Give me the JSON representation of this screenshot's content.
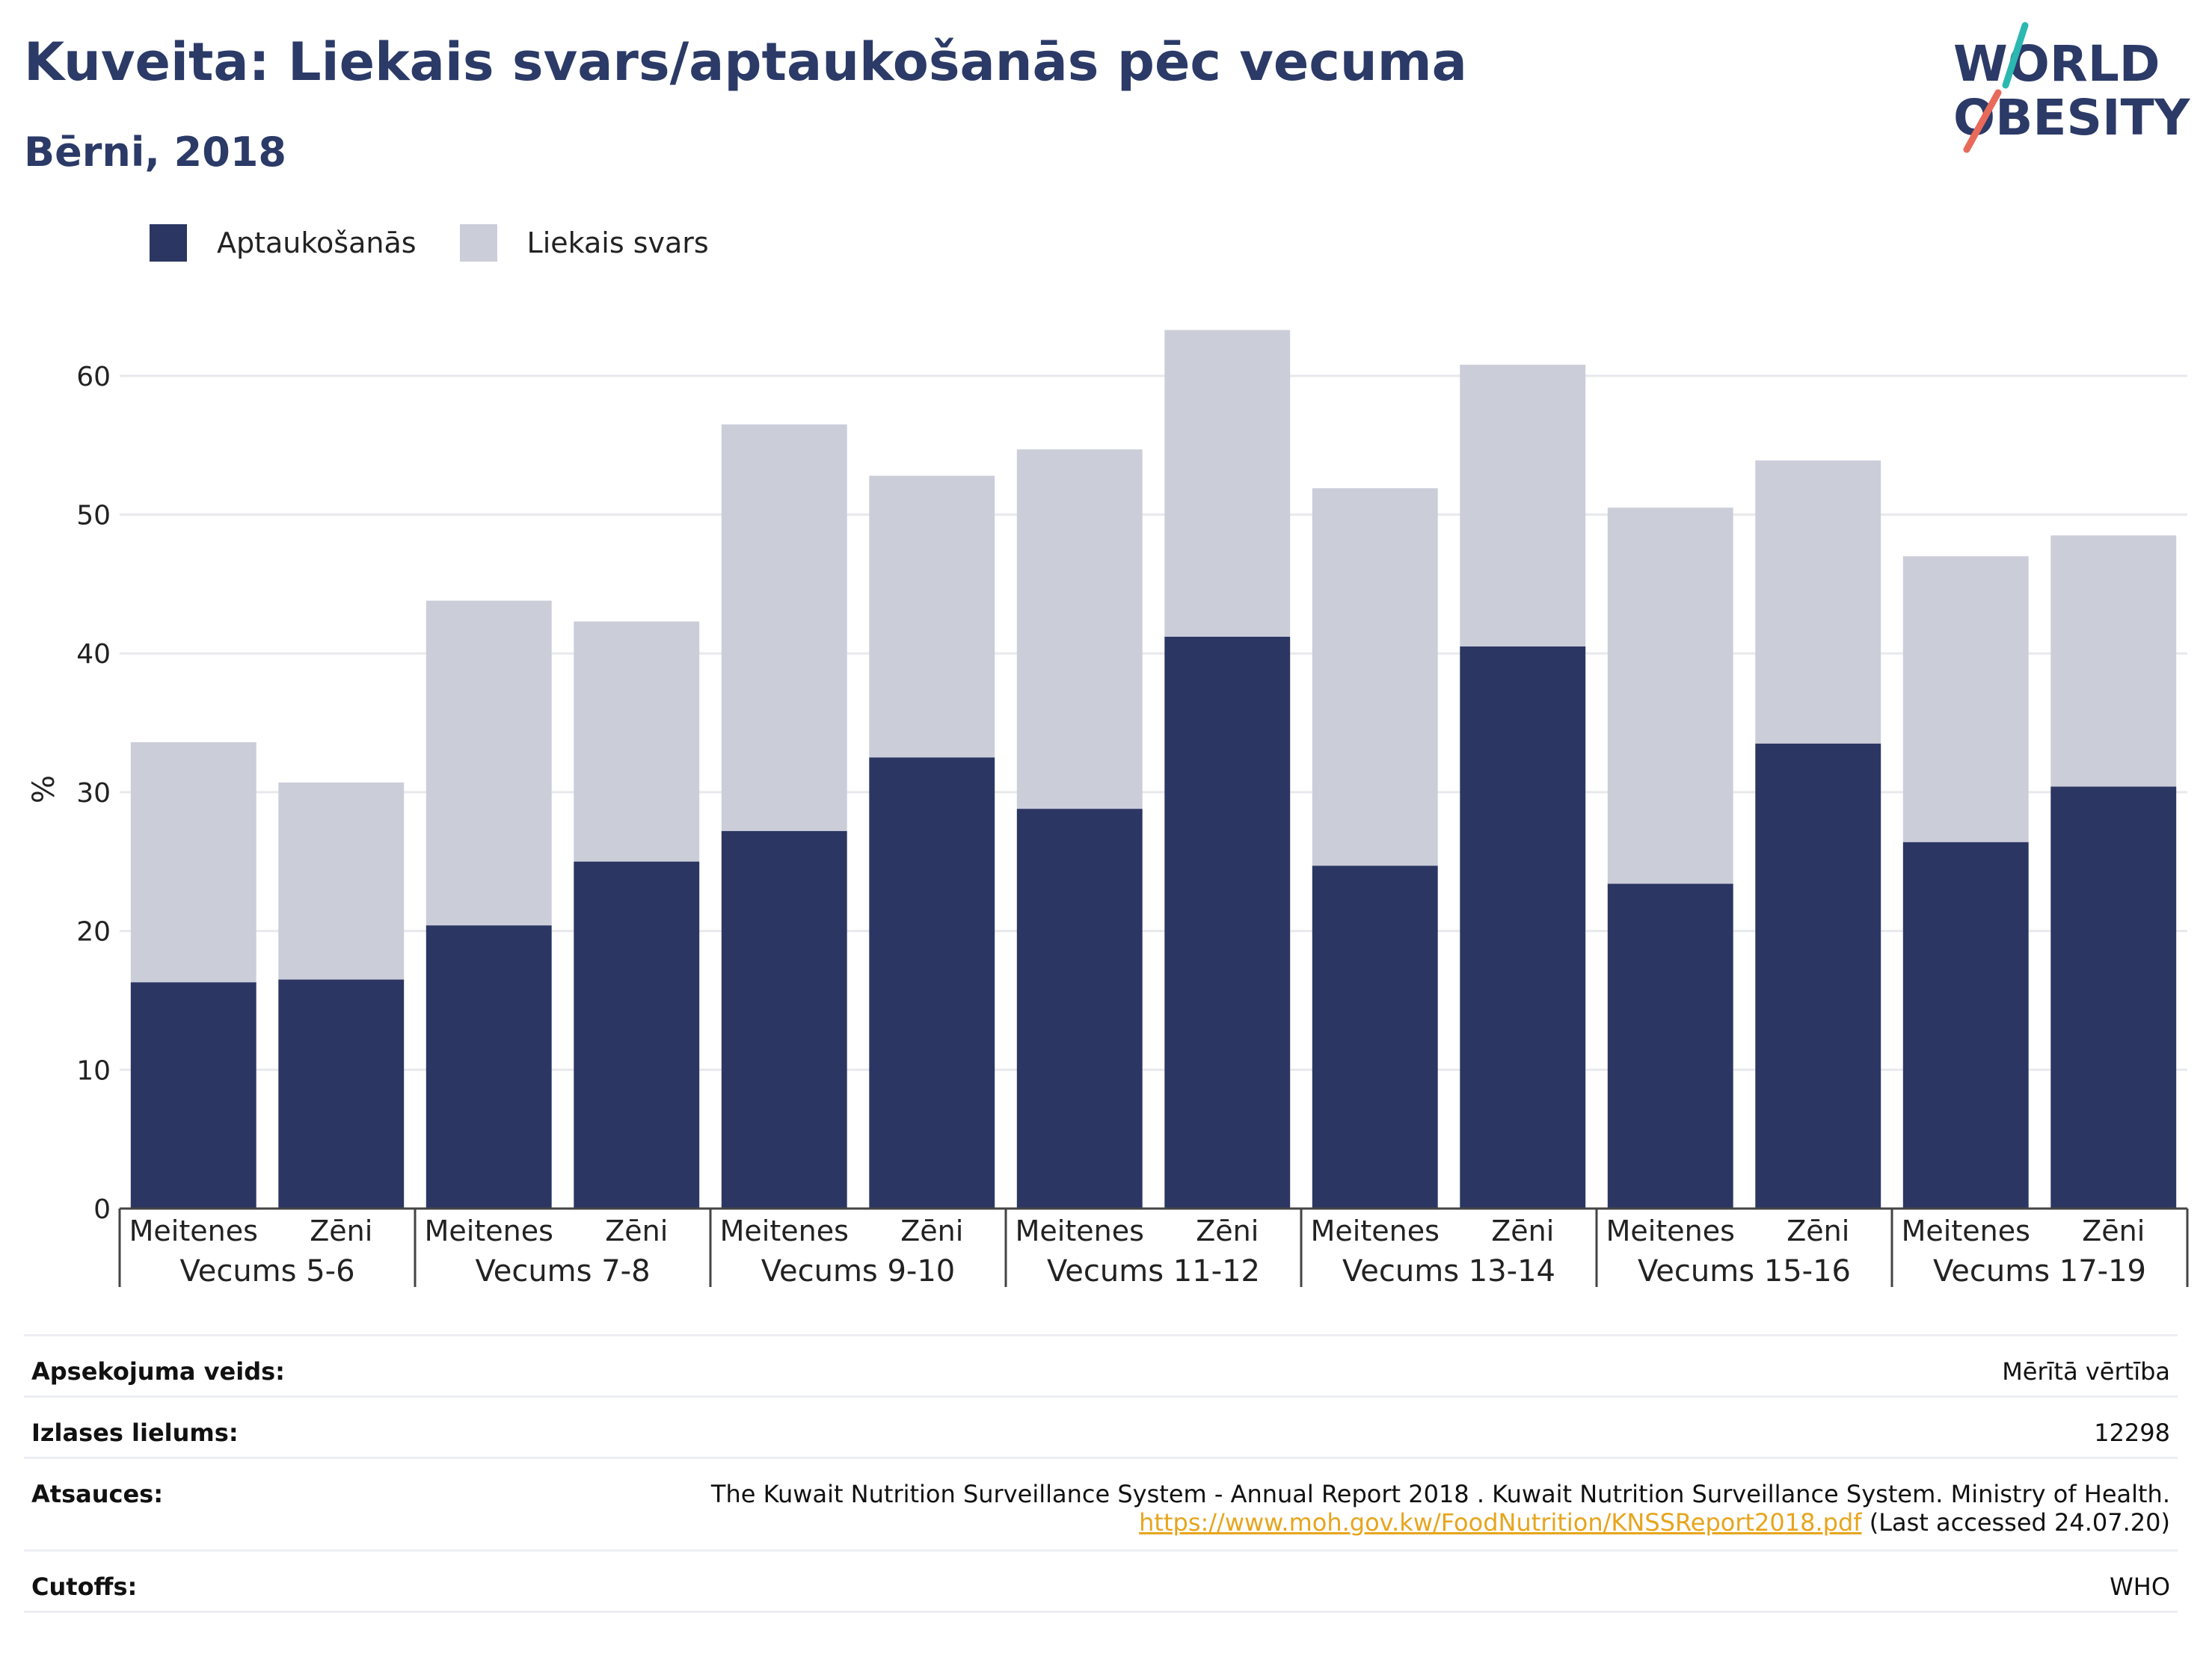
{
  "header": {
    "title": "Kuveita: Liekais svars/aptaukošanās pēc vecuma",
    "subtitle": "Bērni, 2018",
    "logo_line1": "WORLD",
    "logo_line2": "OBESITY"
  },
  "colors": {
    "obesity": "#2b3663",
    "overweight": "#cbcdd9",
    "title": "#2b3a67",
    "link": "#e7a51d",
    "logo_teal": "#2bb8b0",
    "logo_coral": "#e86a5a"
  },
  "chart_data": {
    "type": "bar",
    "stacked": true,
    "ylabel": "%",
    "ylim": [
      0,
      65
    ],
    "yticks": [
      0,
      10,
      20,
      30,
      40,
      50,
      60
    ],
    "grid": true,
    "legend_position": "top-left",
    "groups": [
      "Vecums 5-6",
      "Vecums 7-8",
      "Vecums 9-10",
      "Vecums 11-12",
      "Vecums 13-14",
      "Vecums 15-16",
      "Vecums 17-19"
    ],
    "subcategories": [
      "Meitenes",
      "Zēni"
    ],
    "series": [
      {
        "name": "Aptaukošanās",
        "values": [
          16.3,
          16.5,
          20.4,
          25.0,
          27.2,
          32.5,
          28.8,
          41.2,
          24.7,
          40.5,
          23.4,
          33.5,
          26.4,
          30.4
        ]
      },
      {
        "name": "Liekais svars",
        "values": [
          17.3,
          14.2,
          23.4,
          17.3,
          29.3,
          20.3,
          25.9,
          22.1,
          27.2,
          20.3,
          27.1,
          20.4,
          20.6,
          18.1
        ]
      }
    ]
  },
  "info": {
    "survey_label": "Apsekojuma veids:",
    "survey_value": "Mērītā vērtība",
    "sample_label": "Izlases lielums:",
    "sample_value": "12298",
    "refs_label": "Atsauces:",
    "refs_text": "The Kuwait Nutrition Surveillance System - Annual Report 2018 . Kuwait Nutrition Surveillance System. Ministry of Health.",
    "refs_link": "https://www.moh.gov.kw/FoodNutrition/KNSSReport2018.pdf",
    "refs_accessed": "(Last accessed 24.07.20)",
    "cutoffs_label": "Cutoffs:",
    "cutoffs_value": "WHO"
  }
}
